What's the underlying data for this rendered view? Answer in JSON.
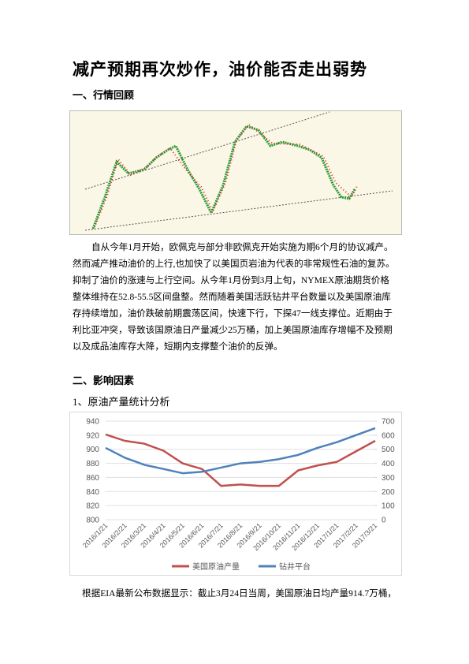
{
  "title": "减产预期再次炒作，油价能否走出弱势",
  "section1": "一、行情回顾",
  "para1": [
    "自从今年1月开始，欧佩克与部分非欧佩克开始实施为期6个月的协议减产。",
    "然而减产推动油价的上行,也加快了以美国页岩油为代表的非常规性石油的复苏。",
    "抑制了油价的涨速与上行空间。从今年1月份到3月上旬，NYMEX原油期货价格",
    "整体维持在52.8-55.5区间盘整。然而随着美国活跃钻井平台数量以及美国原油库",
    "存持续增加，油价跌破前期震荡区间，快速下行，下探47一线支撑位。近期由于",
    "利比亚冲突，导致该国原油日产量减少25万桶，加上美国原油库存增幅不及预期",
    "以及成品油库存大降，短期内支撑整个油价的反弹。"
  ],
  "section2": "二、影响因素",
  "subsection1": "1、原油产量统计分析",
  "para2": "根据EIA最新公布数据显示：截止3月24日当周，美国原油日均产量914.7万桶，",
  "chart_data": {
    "type": "line",
    "categories": [
      "2016/1/21",
      "2016/2/21",
      "2016/3/21",
      "2016/4/21",
      "2016/5/21",
      "2016/6/21",
      "2016/7/21",
      "2016/8/21",
      "2016/9/21",
      "2016/10/21",
      "2016/11/21",
      "2016/12/21",
      "2017/1/21",
      "2017/2/21",
      "2017/3/21"
    ],
    "series": [
      {
        "name": "美国原油产量",
        "color": "#c0504d",
        "values": [
          921,
          912,
          908,
          898,
          880,
          872,
          848,
          850,
          848,
          848,
          870,
          877,
          882,
          897,
          912
        ]
      },
      {
        "name": "钻井平台",
        "color": "#4f81bd",
        "axis": "y2",
        "values": [
          510,
          440,
          390,
          360,
          330,
          340,
          370,
          400,
          410,
          430,
          460,
          510,
          550,
          600,
          650
        ]
      }
    ],
    "ylim": [
      800,
      940
    ],
    "yticks": [
      800,
      820,
      840,
      860,
      880,
      900,
      920,
      940
    ],
    "y2lim": [
      0,
      700
    ],
    "y2ticks": [
      0,
      100,
      200,
      300,
      400,
      500,
      600,
      700
    ],
    "legend": "bottom"
  }
}
